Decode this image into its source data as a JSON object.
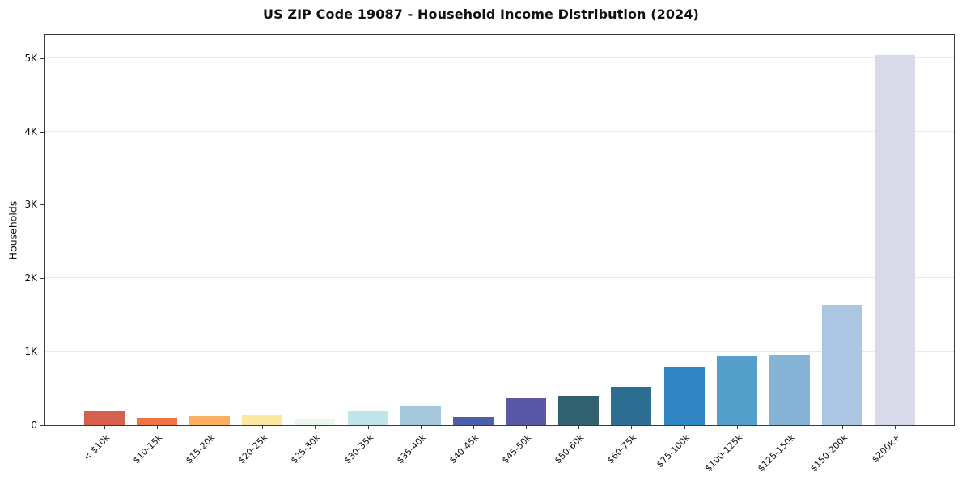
{
  "chart_data": {
    "type": "bar",
    "title": "US ZIP Code 19087 - Household Income Distribution (2024)",
    "xlabel": "",
    "ylabel": "Households",
    "categories": [
      "< $10k",
      "$10-15k",
      "$15-20k",
      "$20-25k",
      "$25-30k",
      "$30-35k",
      "$35-40k",
      "$40-45k",
      "$45-50k",
      "$50-60k",
      "$60-75k",
      "$75-100k",
      "$100-125k",
      "$125-150k",
      "$150-200k",
      "$200k+"
    ],
    "values": [
      190,
      95,
      120,
      140,
      85,
      200,
      260,
      110,
      360,
      395,
      515,
      790,
      950,
      960,
      1645,
      5040
    ],
    "bar_colors": [
      "#d5604d",
      "#ee7445",
      "#fcae61",
      "#fce8a0",
      "#eaf7ec",
      "#bfe5e8",
      "#a6c6de",
      "#4d5fa8",
      "#5b57a7",
      "#31606e",
      "#2d6e93",
      "#2f86c2",
      "#55a0cb",
      "#86b4d6",
      "#abc6e2",
      "#d9dae9"
    ],
    "ylim": [
      0,
      5315
    ],
    "yticks": [
      {
        "value": 0,
        "label": "0"
      },
      {
        "value": 1000,
        "label": "1K"
      },
      {
        "value": 2000,
        "label": "2K"
      },
      {
        "value": 3000,
        "label": "3K"
      },
      {
        "value": 4000,
        "label": "4K"
      },
      {
        "value": 5000,
        "label": "5K"
      }
    ],
    "grid": "horizontal",
    "legend": "none"
  }
}
